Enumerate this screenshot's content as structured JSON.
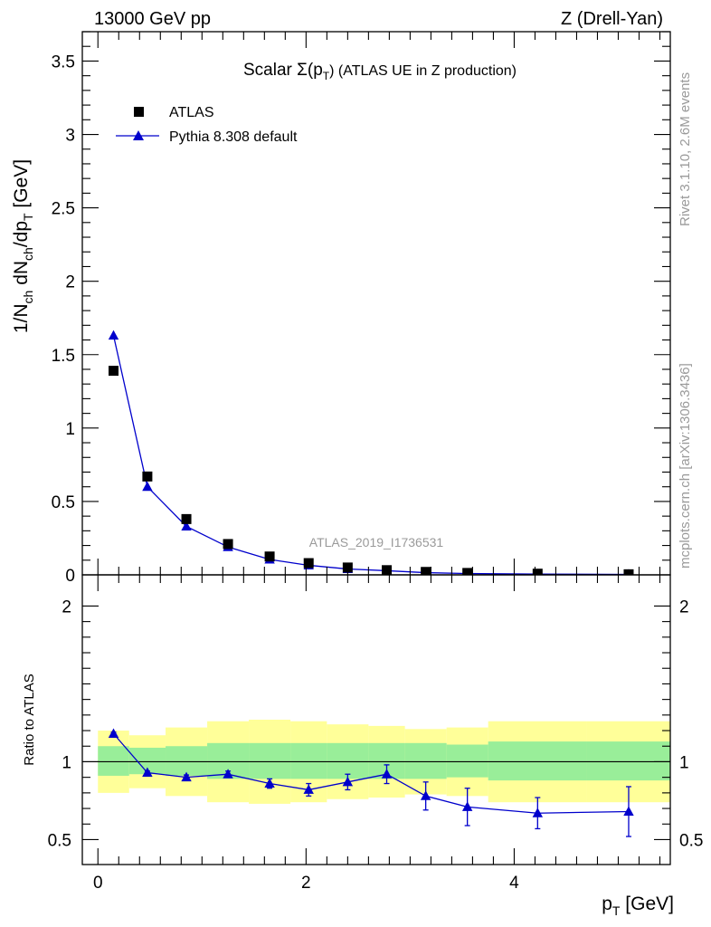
{
  "header": {
    "left": "13000 GeV pp",
    "right": "Z (Drell-Yan)"
  },
  "side": {
    "rivet": "Rivet 3.1.10,  2.6M events",
    "mcplots": "mcplots.cern.ch [arXiv:1306.3436]"
  },
  "watermark": "ATLAS_2019_I1736531",
  "title": {
    "pre": "Scalar ",
    "sigma": "Σ(p",
    "sub": "T",
    "post": ") (ATLAS UE in Z production)"
  },
  "y_label_top": {
    "a": "1/N",
    "a_sub": "ch",
    "b": " dN",
    "b_sub": "ch",
    "c": "/dp",
    "c_sub": "T",
    "d": " [GeV]"
  },
  "y_label_bottom": "Ratio to ATLAS",
  "x_label": {
    "a": "p",
    "a_sub": "T",
    "b": " [GeV]"
  },
  "legend": {
    "data": "ATLAS",
    "mc": "Pythia 8.308 default"
  },
  "colors": {
    "mc": "#0000cc",
    "data": "#000000",
    "band_inner": "#99ee99",
    "band_outer": "#ffff99"
  },
  "chart_data": [
    {
      "type": "scatter",
      "panel": "main",
      "xlim": [
        -0.15,
        5.5
      ],
      "ylim": [
        0,
        3.7
      ],
      "yticks": [
        "0",
        "0.5",
        "1",
        "1.5",
        "2",
        "2.5",
        "3",
        "3.5"
      ],
      "x_edges": [
        0.0,
        0.3,
        0.65,
        1.05,
        1.45,
        1.85,
        2.2,
        2.6,
        2.95,
        3.35,
        3.75,
        4.7,
        5.5
      ],
      "series": [
        {
          "name": "ATLAS",
          "x": [
            0.15,
            0.475,
            0.85,
            1.25,
            1.65,
            2.025,
            2.4,
            2.775,
            3.15,
            3.55,
            4.225,
            5.1
          ],
          "y": [
            1.39,
            0.67,
            0.38,
            0.21,
            0.125,
            0.08,
            0.05,
            0.032,
            0.02,
            0.013,
            0.008,
            0.004
          ]
        },
        {
          "name": "Pythia 8.308 default",
          "x": [
            0.15,
            0.475,
            0.85,
            1.25,
            1.65,
            2.025,
            2.4,
            2.775,
            3.15,
            3.55,
            4.225,
            5.1
          ],
          "y": [
            1.63,
            0.6,
            0.33,
            0.19,
            0.105,
            0.065,
            0.04,
            0.028,
            0.015,
            0.009,
            0.005,
            0.003
          ]
        }
      ]
    },
    {
      "type": "line",
      "panel": "ratio",
      "xlim": [
        -0.15,
        5.5
      ],
      "ylim": [
        0.34,
        2.2
      ],
      "yticks": [
        "0.5",
        "1",
        "2"
      ],
      "xticks": [
        "0",
        "2",
        "4"
      ],
      "x_edges": [
        0.0,
        0.3,
        0.65,
        1.05,
        1.45,
        1.85,
        2.2,
        2.6,
        2.95,
        3.35,
        3.75,
        4.7,
        5.5
      ],
      "band_inner": {
        "lo": [
          0.91,
          0.92,
          0.91,
          0.89,
          0.89,
          0.89,
          0.89,
          0.89,
          0.89,
          0.9,
          0.88,
          0.88
        ],
        "hi": [
          1.1,
          1.09,
          1.1,
          1.12,
          1.12,
          1.12,
          1.12,
          1.12,
          1.12,
          1.11,
          1.13,
          1.13
        ]
      },
      "band_outer": {
        "lo": [
          0.8,
          0.83,
          0.78,
          0.74,
          0.73,
          0.74,
          0.76,
          0.77,
          0.79,
          0.78,
          0.74,
          0.74
        ]
      },
      "series": [
        {
          "name": "Pythia 8.308 default",
          "x": [
            0.15,
            0.475,
            0.85,
            1.25,
            1.65,
            2.025,
            2.4,
            2.775,
            3.15,
            3.55,
            4.225,
            5.1
          ],
          "y": [
            1.18,
            0.93,
            0.9,
            0.92,
            0.86,
            0.82,
            0.87,
            0.92,
            0.78,
            0.71,
            0.67,
            0.68
          ],
          "err": [
            0.01,
            0.01,
            0.015,
            0.02,
            0.03,
            0.04,
            0.05,
            0.06,
            0.09,
            0.12,
            0.1,
            0.16
          ]
        }
      ]
    }
  ]
}
